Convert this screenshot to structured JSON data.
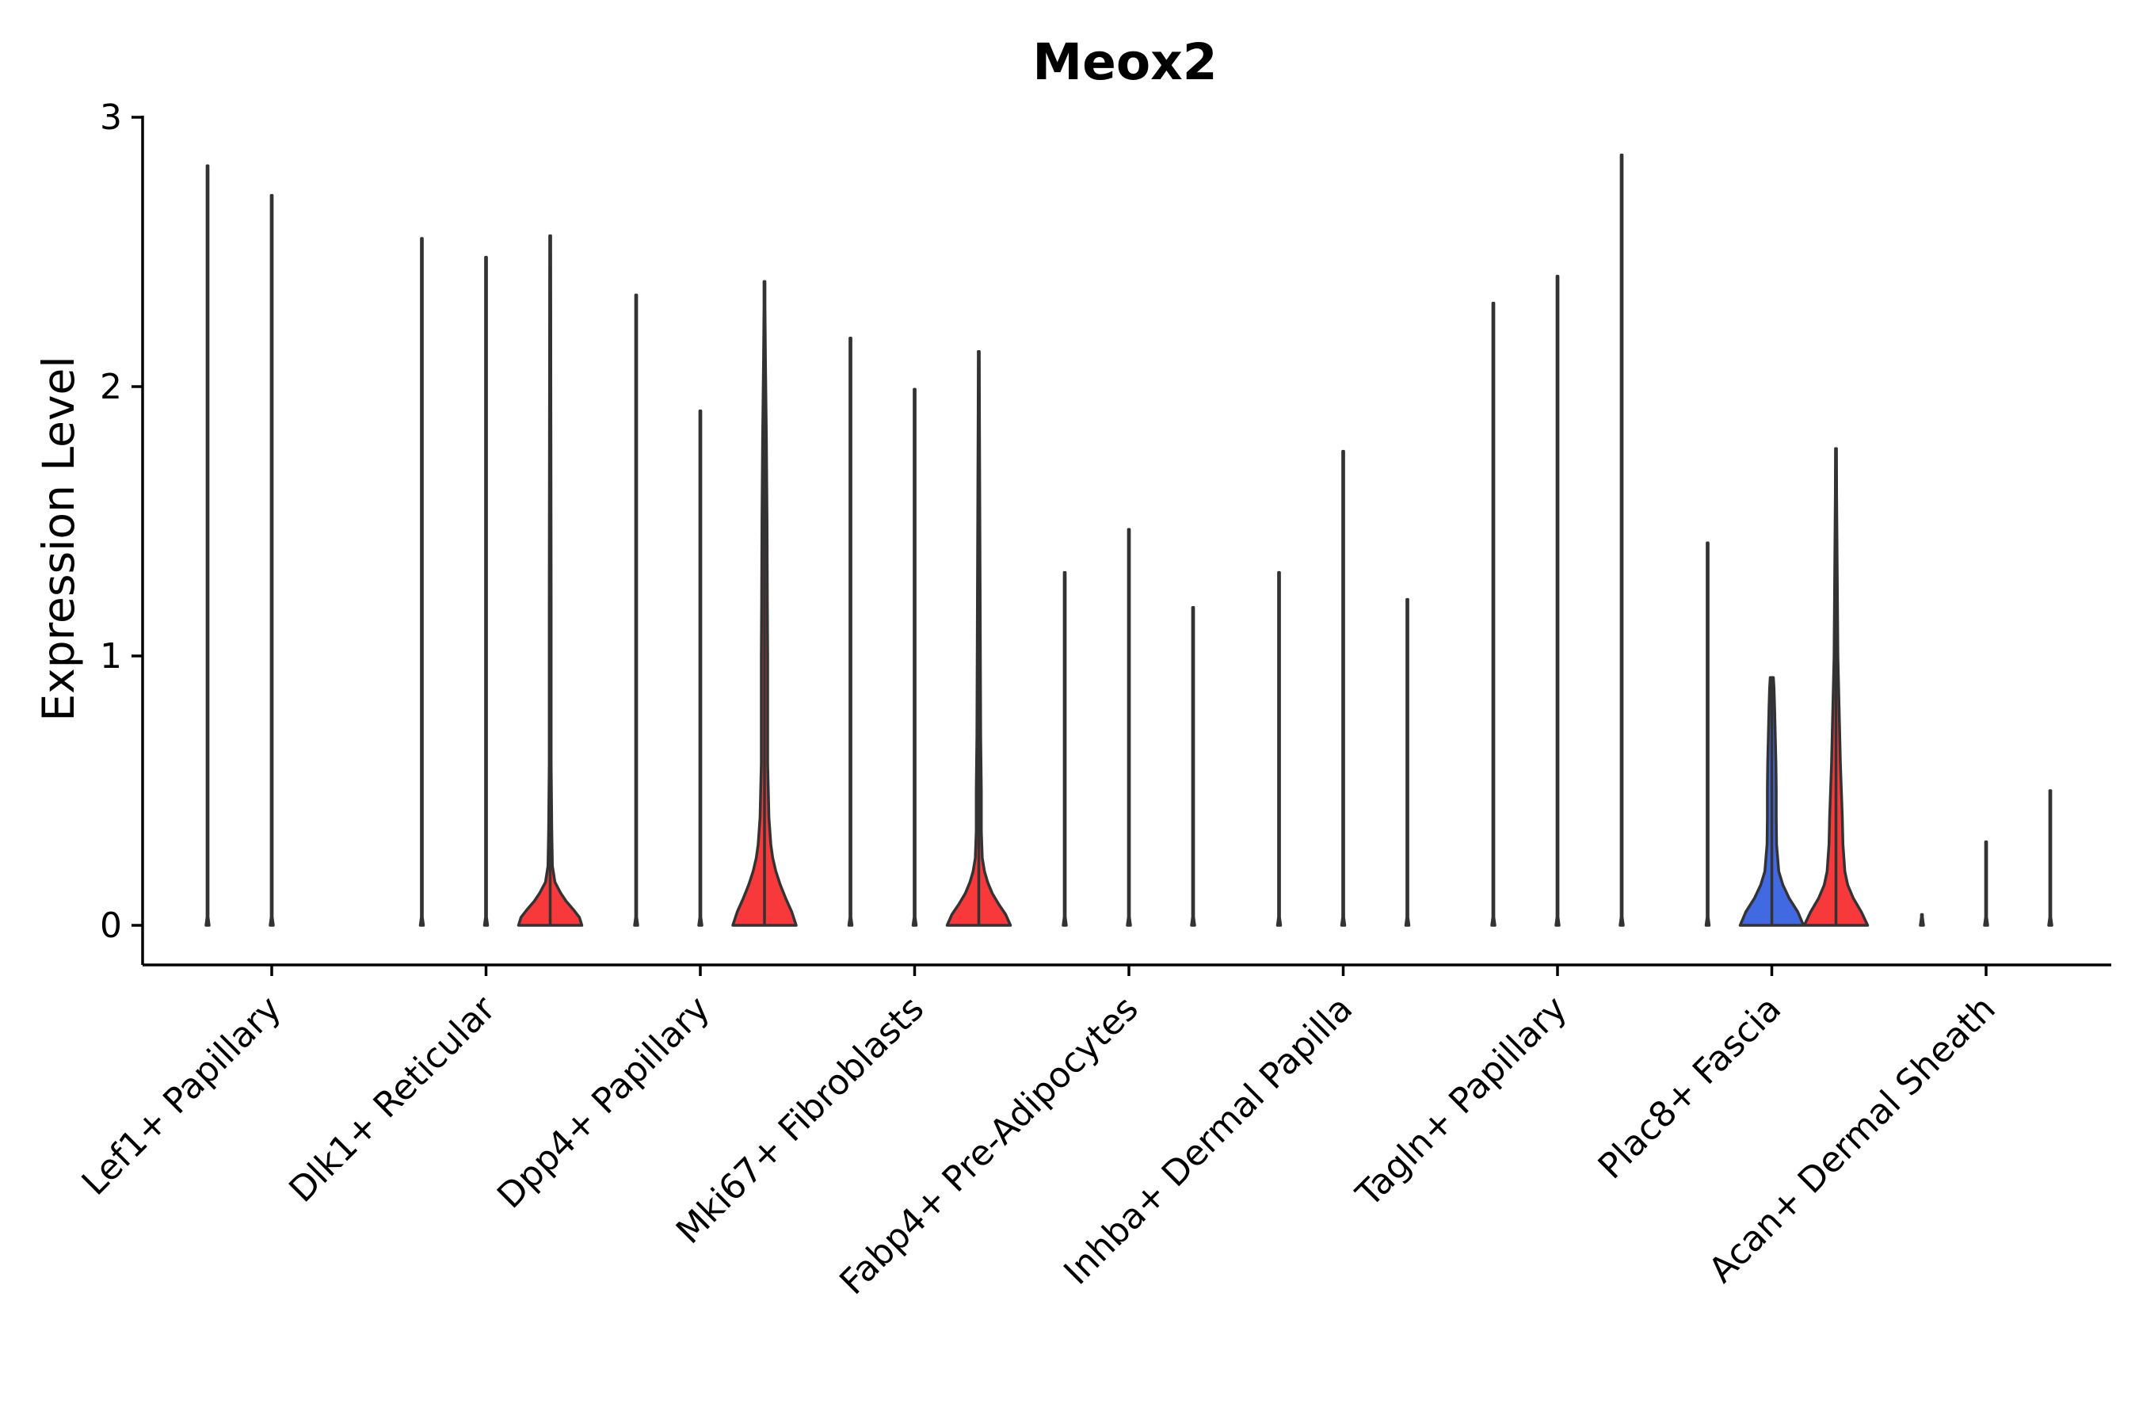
{
  "chart_data": {
    "type": "violin",
    "title": "Meox2",
    "xlabel": "",
    "ylabel": "Expression Level",
    "ylim": [
      -0.15,
      3
    ],
    "yticks": [
      0,
      1,
      2,
      3
    ],
    "grid": false,
    "legend": "none",
    "colors": {
      "zero_group": "#ffffff",
      "red_group": "#f8393b",
      "blue_group": "#4169e1",
      "outline": "#333333"
    },
    "categories": [
      "Lef1+ Papillary",
      "Dlk1+ Reticular",
      "Dpp4+ Papillary",
      "Mki67+ Fibroblasts",
      "Fabp4+ Pre-Adipocytes",
      "Inhba+ Dermal Papilla",
      "Tagln+ Papillary",
      "Plac8+ Fascia",
      "Acan+ Dermal Sheath"
    ],
    "violins": [
      {
        "category": "Lef1+ Papillary",
        "group": 1,
        "max": 2.82,
        "color": "zero_group",
        "base_width": 0.05,
        "profile": []
      },
      {
        "category": "Lef1+ Papillary",
        "group": 2,
        "max": 2.71,
        "color": "zero_group",
        "base_width": 0.05,
        "profile": []
      },
      {
        "category": "Dlk1+ Reticular",
        "group": 1,
        "max": 2.55,
        "color": "zero_group",
        "base_width": 0.05,
        "profile": []
      },
      {
        "category": "Dlk1+ Reticular",
        "group": 2,
        "max": 2.48,
        "color": "zero_group",
        "base_width": 0.05,
        "profile": []
      },
      {
        "category": "Dlk1+ Reticular",
        "group": 3,
        "max": 2.56,
        "color": "red_group",
        "base_width": 1.0,
        "profile": [
          [
            0,
            1.0
          ],
          [
            0.03,
            0.92
          ],
          [
            0.06,
            0.72
          ],
          [
            0.09,
            0.5
          ],
          [
            0.12,
            0.33
          ],
          [
            0.16,
            0.15
          ],
          [
            0.22,
            0.07
          ],
          [
            0.35,
            0.05
          ],
          [
            0.6,
            0.03
          ],
          [
            1.2,
            0.03
          ],
          [
            2.0,
            0.02
          ]
        ]
      },
      {
        "category": "Dpp4+ Papillary",
        "group": 1,
        "max": 2.34,
        "color": "zero_group",
        "base_width": 0.05,
        "profile": []
      },
      {
        "category": "Dpp4+ Papillary",
        "group": 2,
        "max": 1.91,
        "color": "zero_group",
        "base_width": 0.05,
        "profile": []
      },
      {
        "category": "Dpp4+ Papillary",
        "group": 3,
        "max": 2.39,
        "color": "red_group",
        "base_width": 1.0,
        "profile": [
          [
            0,
            1.0
          ],
          [
            0.05,
            0.86
          ],
          [
            0.1,
            0.67
          ],
          [
            0.15,
            0.5
          ],
          [
            0.2,
            0.36
          ],
          [
            0.25,
            0.26
          ],
          [
            0.3,
            0.2
          ],
          [
            0.4,
            0.14
          ],
          [
            0.5,
            0.12
          ],
          [
            0.6,
            0.1
          ],
          [
            0.8,
            0.1
          ],
          [
            1.0,
            0.1
          ],
          [
            1.2,
            0.09
          ],
          [
            1.5,
            0.08
          ],
          [
            1.8,
            0.06
          ],
          [
            2.1,
            0.03
          ],
          [
            2.3,
            0.01
          ]
        ]
      },
      {
        "category": "Mki67+ Fibroblasts",
        "group": 1,
        "max": 2.18,
        "color": "zero_group",
        "base_width": 0.05,
        "profile": []
      },
      {
        "category": "Mki67+ Fibroblasts",
        "group": 2,
        "max": 1.99,
        "color": "zero_group",
        "base_width": 0.05,
        "profile": []
      },
      {
        "category": "Mki67+ Fibroblasts",
        "group": 3,
        "max": 2.13,
        "color": "red_group",
        "base_width": 1.0,
        "profile": [
          [
            0,
            1.0
          ],
          [
            0.04,
            0.85
          ],
          [
            0.08,
            0.62
          ],
          [
            0.12,
            0.42
          ],
          [
            0.16,
            0.28
          ],
          [
            0.2,
            0.18
          ],
          [
            0.25,
            0.11
          ],
          [
            0.35,
            0.08
          ],
          [
            0.5,
            0.08
          ],
          [
            0.7,
            0.06
          ],
          [
            1.0,
            0.05
          ],
          [
            1.3,
            0.04
          ],
          [
            1.6,
            0.03
          ],
          [
            1.9,
            0.02
          ]
        ]
      },
      {
        "category": "Fabp4+ Pre-Adipocytes",
        "group": 1,
        "max": 1.31,
        "color": "zero_group",
        "base_width": 0.05,
        "profile": []
      },
      {
        "category": "Fabp4+ Pre-Adipocytes",
        "group": 2,
        "max": 1.47,
        "color": "zero_group",
        "base_width": 0.05,
        "profile": []
      },
      {
        "category": "Fabp4+ Pre-Adipocytes",
        "group": 3,
        "max": 1.18,
        "color": "zero_group",
        "base_width": 0.05,
        "profile": []
      },
      {
        "category": "Inhba+ Dermal Papilla",
        "group": 1,
        "max": 1.31,
        "color": "zero_group",
        "base_width": 0.05,
        "profile": []
      },
      {
        "category": "Inhba+ Dermal Papilla",
        "group": 2,
        "max": 1.76,
        "color": "zero_group",
        "base_width": 0.05,
        "profile": []
      },
      {
        "category": "Inhba+ Dermal Papilla",
        "group": 3,
        "max": 1.21,
        "color": "zero_group",
        "base_width": 0.05,
        "profile": []
      },
      {
        "category": "Tagln+ Papillary",
        "group": 1,
        "max": 2.31,
        "color": "zero_group",
        "base_width": 0.05,
        "profile": []
      },
      {
        "category": "Tagln+ Papillary",
        "group": 2,
        "max": 2.41,
        "color": "zero_group",
        "base_width": 0.05,
        "profile": []
      },
      {
        "category": "Tagln+ Papillary",
        "group": 3,
        "max": 2.86,
        "color": "zero_group",
        "base_width": 0.05,
        "profile": []
      },
      {
        "category": "Plac8+ Fascia",
        "group": 1,
        "max": 1.42,
        "color": "zero_group",
        "base_width": 0.05,
        "profile": []
      },
      {
        "category": "Plac8+ Fascia",
        "group": 2,
        "max": 0.92,
        "color": "blue_group",
        "base_width": 1.0,
        "profile": [
          [
            0,
            1.0
          ],
          [
            0.05,
            0.82
          ],
          [
            0.1,
            0.55
          ],
          [
            0.15,
            0.35
          ],
          [
            0.2,
            0.22
          ],
          [
            0.3,
            0.15
          ],
          [
            0.4,
            0.14
          ],
          [
            0.5,
            0.14
          ],
          [
            0.6,
            0.13
          ],
          [
            0.7,
            0.11
          ],
          [
            0.8,
            0.09
          ],
          [
            0.88,
            0.07
          ],
          [
            0.92,
            0.05
          ]
        ]
      },
      {
        "category": "Plac8+ Fascia",
        "group": 3,
        "max": 1.77,
        "color": "red_group",
        "base_width": 1.0,
        "profile": [
          [
            0,
            1.0
          ],
          [
            0.05,
            0.8
          ],
          [
            0.1,
            0.55
          ],
          [
            0.15,
            0.37
          ],
          [
            0.2,
            0.28
          ],
          [
            0.3,
            0.22
          ],
          [
            0.4,
            0.2
          ],
          [
            0.5,
            0.17
          ],
          [
            0.6,
            0.14
          ],
          [
            0.8,
            0.1
          ],
          [
            1.0,
            0.06
          ],
          [
            1.3,
            0.04
          ],
          [
            1.6,
            0.02
          ]
        ]
      },
      {
        "category": "Acan+ Dermal Sheath",
        "group": 1,
        "max": 0.0,
        "color": "zero_group",
        "base_width": 0.05,
        "profile": []
      },
      {
        "category": "Acan+ Dermal Sheath",
        "group": 2,
        "max": 0.31,
        "color": "zero_group",
        "base_width": 0.05,
        "profile": []
      },
      {
        "category": "Acan+ Dermal Sheath",
        "group": 3,
        "max": 0.5,
        "color": "zero_group",
        "base_width": 0.05,
        "profile": []
      }
    ]
  }
}
